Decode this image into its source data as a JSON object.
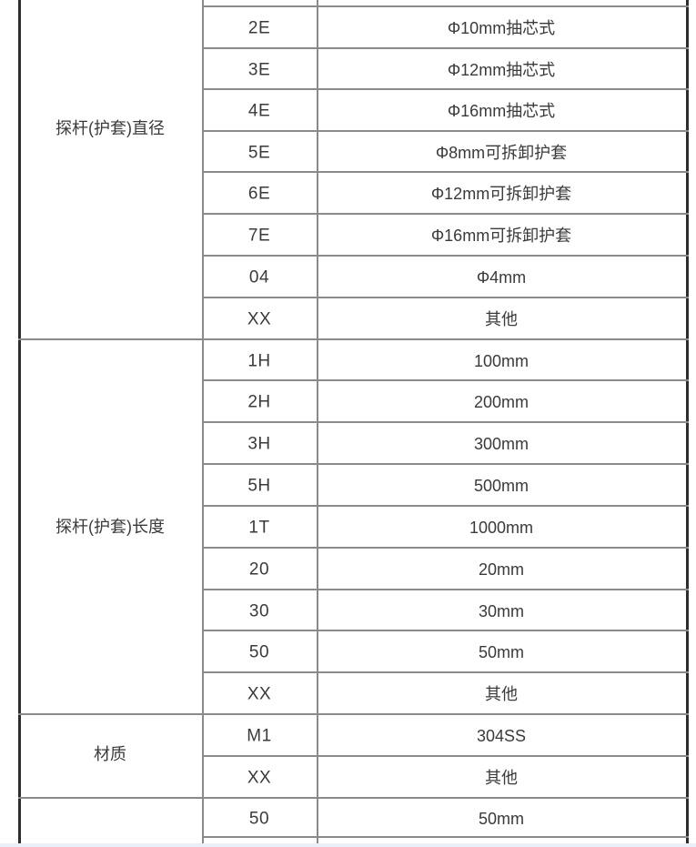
{
  "page": {
    "background": "#ffffff",
    "bottom_strip_color": "#e8f1fa"
  },
  "table": {
    "border_color": "#2d2d2d",
    "grid_color": "#8a8a8a",
    "text_color": "#3a3a3a",
    "sections": [
      {
        "category": "探杆(护套)直径",
        "rows": [
          {
            "code": "2E",
            "desc": "Φ10mm抽芯式"
          },
          {
            "code": "3E",
            "desc": "Φ12mm抽芯式"
          },
          {
            "code": "4E",
            "desc": "Φ16mm抽芯式"
          },
          {
            "code": "5E",
            "desc": "Φ8mm可拆卸护套"
          },
          {
            "code": "6E",
            "desc": "Φ12mm可拆卸护套"
          },
          {
            "code": "7E",
            "desc": "Φ16mm可拆卸护套"
          },
          {
            "code": "04",
            "desc": "Φ4mm"
          },
          {
            "code": "XX",
            "desc": "其他"
          }
        ]
      },
      {
        "category": "探杆(护套)长度",
        "rows": [
          {
            "code": "1H",
            "desc": "100mm"
          },
          {
            "code": "2H",
            "desc": "200mm"
          },
          {
            "code": "3H",
            "desc": "300mm"
          },
          {
            "code": "5H",
            "desc": "500mm"
          },
          {
            "code": "1T",
            "desc": "1000mm"
          },
          {
            "code": "20",
            "desc": "20mm"
          },
          {
            "code": "30",
            "desc": "30mm"
          },
          {
            "code": "50",
            "desc": "50mm"
          },
          {
            "code": "XX",
            "desc": "其他"
          }
        ]
      },
      {
        "category": "材质",
        "rows": [
          {
            "code": "M1",
            "desc": "304SS"
          },
          {
            "code": "XX",
            "desc": "其他"
          }
        ]
      },
      {
        "category": "",
        "rows": [
          {
            "code": "50",
            "desc": "50mm"
          }
        ]
      }
    ]
  }
}
